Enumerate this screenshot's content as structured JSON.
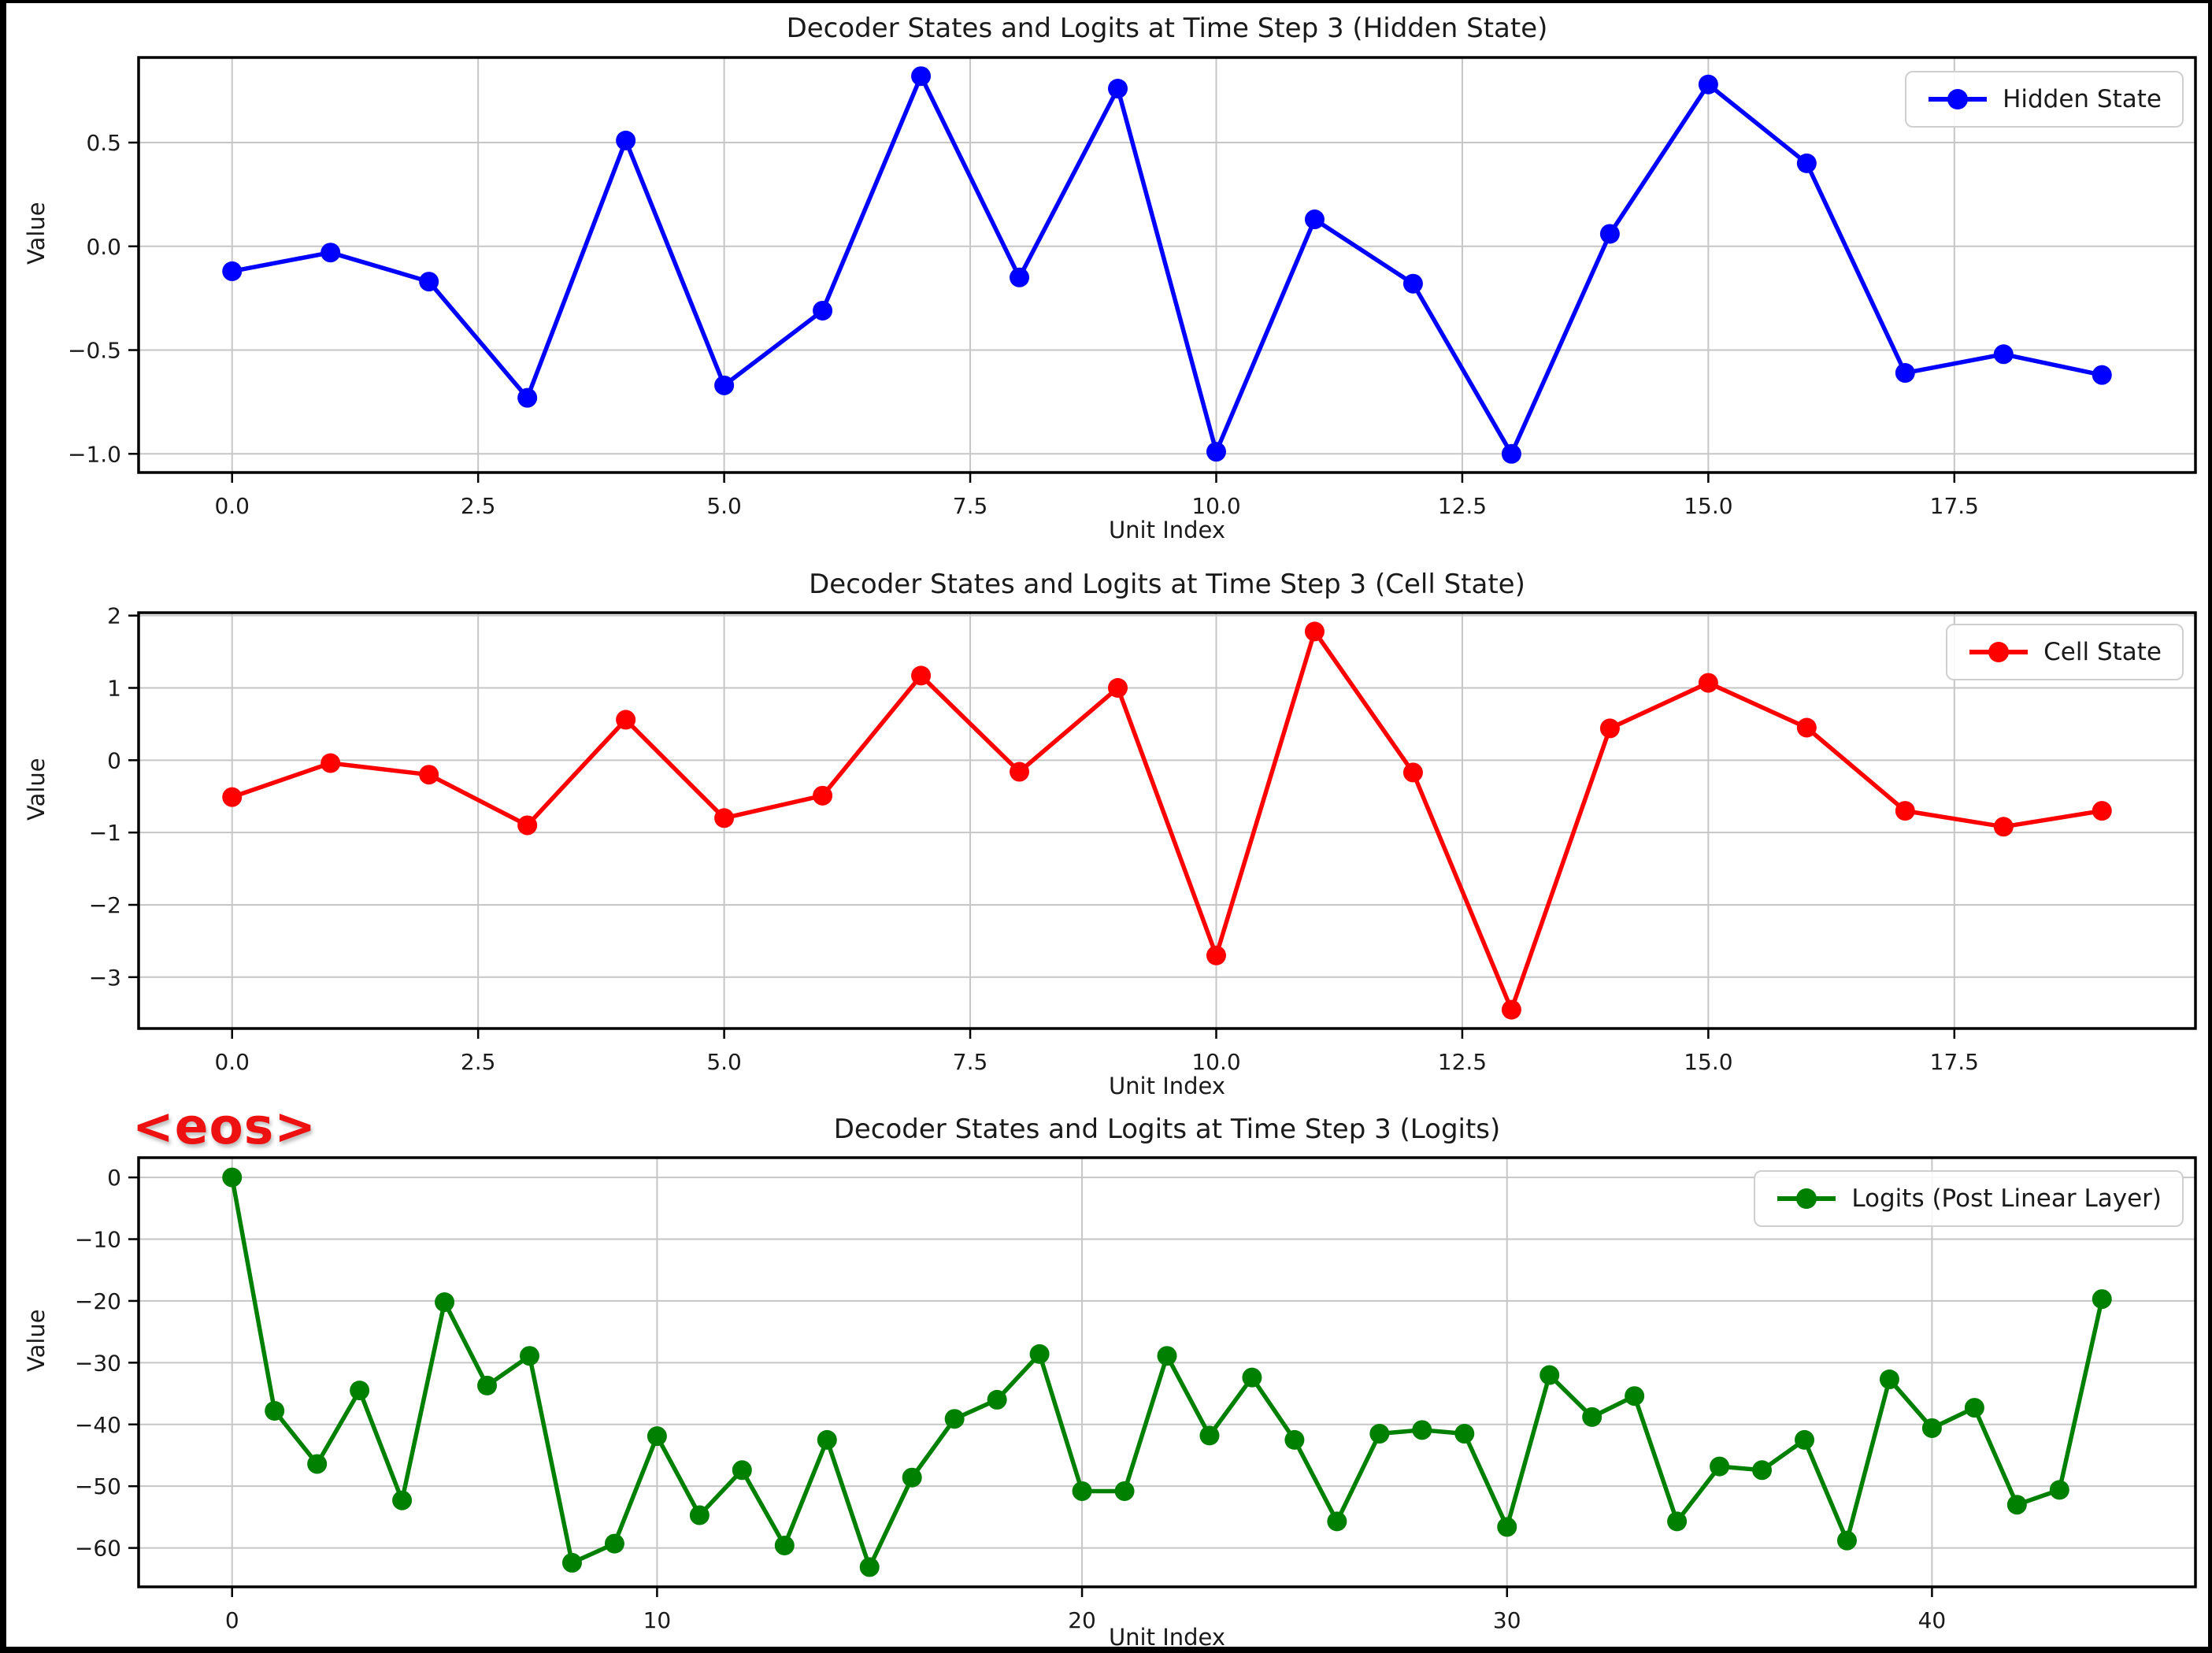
{
  "figure": {
    "background": "#ffffff",
    "border_color": "#000000",
    "grid_color": "#c6c6c6",
    "axis_color": "#000000",
    "text_color": "#1a1a1a"
  },
  "annotation": {
    "text": "<eos>",
    "color": "#ee1111"
  },
  "chart_data": [
    {
      "type": "line",
      "title": "Decoder States and Logits at Time Step 3 (Hidden State)",
      "xlabel": "Unit Index",
      "ylabel": "Value",
      "legend_label": "Hidden State",
      "legend_position": "upper right",
      "color": "#0000ff",
      "grid": true,
      "x": [
        0,
        1,
        2,
        3,
        4,
        5,
        6,
        7,
        8,
        9,
        10,
        11,
        12,
        13,
        14,
        15,
        16,
        17,
        18,
        19
      ],
      "values": [
        -0.12,
        -0.03,
        -0.17,
        -0.73,
        0.51,
        -0.67,
        -0.31,
        0.82,
        -0.15,
        0.76,
        -0.99,
        0.13,
        -0.18,
        -1.0,
        0.06,
        0.78,
        0.4,
        -0.61,
        -0.52,
        -0.62
      ],
      "xlim": [
        -0.95,
        19.95
      ],
      "ylim": [
        -1.09,
        0.91
      ],
      "xticks": [
        0,
        2.5,
        5,
        7.5,
        10,
        12.5,
        15,
        17.5
      ],
      "xtick_labels": [
        "0.0",
        "2.5",
        "5.0",
        "7.5",
        "10.0",
        "12.5",
        "15.0",
        "17.5"
      ],
      "yticks": [
        0.5,
        0.0,
        -0.5,
        -1.0
      ],
      "ytick_labels": [
        "0.5",
        "0.0",
        "−0.5",
        "−1.0"
      ]
    },
    {
      "type": "line",
      "title": "Decoder States and Logits at Time Step 3 (Cell State)",
      "xlabel": "Unit Index",
      "ylabel": "Value",
      "legend_label": "Cell State",
      "legend_position": "upper right",
      "color": "#ff0000",
      "grid": true,
      "x": [
        0,
        1,
        2,
        3,
        4,
        5,
        6,
        7,
        8,
        9,
        10,
        11,
        12,
        13,
        14,
        15,
        16,
        17,
        18,
        19
      ],
      "values": [
        -0.51,
        -0.04,
        -0.2,
        -0.9,
        0.56,
        -0.8,
        -0.49,
        1.17,
        -0.16,
        1.0,
        -2.7,
        1.78,
        -0.17,
        -3.45,
        0.44,
        1.07,
        0.45,
        -0.7,
        -0.92,
        -0.7
      ],
      "xlim": [
        -0.95,
        19.95
      ],
      "ylim": [
        -3.71,
        2.04
      ],
      "xticks": [
        0,
        2.5,
        5,
        7.5,
        10,
        12.5,
        15,
        17.5
      ],
      "xtick_labels": [
        "0.0",
        "2.5",
        "5.0",
        "7.5",
        "10.0",
        "12.5",
        "15.0",
        "17.5"
      ],
      "yticks": [
        2,
        1,
        0,
        -1,
        -2,
        -3
      ],
      "ytick_labels": [
        "2",
        "1",
        "0",
        "−1",
        "−2",
        "−3"
      ]
    },
    {
      "type": "line",
      "title": "Decoder States and Logits at Time Step 3 (Logits)",
      "xlabel": "Unit Index",
      "ylabel": "Value",
      "legend_label": "Logits (Post Linear Layer)",
      "legend_position": "upper right",
      "color": "#008000",
      "grid": true,
      "x": [
        0,
        1,
        2,
        3,
        4,
        5,
        6,
        7,
        8,
        9,
        10,
        11,
        12,
        13,
        14,
        15,
        16,
        17,
        18,
        19,
        20,
        21,
        22,
        23,
        24,
        25,
        26,
        27,
        28,
        29,
        30,
        31,
        32,
        33,
        34,
        35,
        36,
        37,
        38,
        39,
        40,
        41,
        42,
        43,
        44
      ],
      "values": [
        0,
        -37.8,
        -46.4,
        -34.5,
        -52.3,
        -20.2,
        -33.7,
        -28.9,
        -62.4,
        -59.3,
        -41.9,
        -54.7,
        -47.4,
        -59.6,
        -42.5,
        -63.1,
        -48.6,
        -39.1,
        -36.0,
        -28.6,
        -50.8,
        -50.8,
        -28.9,
        -41.8,
        -32.4,
        -42.5,
        -55.7,
        -41.5,
        -40.9,
        -41.5,
        -56.6,
        -32.0,
        -38.8,
        -35.4,
        -55.7,
        -46.8,
        -47.4,
        -42.5,
        -58.8,
        -32.7,
        -40.6,
        -37.3,
        -53.0,
        -50.6,
        -19.7
      ],
      "xlim": [
        -2.2,
        46.2
      ],
      "ylim": [
        -66.3,
        3.2
      ],
      "xticks": [
        0,
        10,
        20,
        30,
        40
      ],
      "xtick_labels": [
        "0",
        "10",
        "20",
        "30",
        "40"
      ],
      "yticks": [
        0,
        -10,
        -20,
        -30,
        -40,
        -50,
        -60
      ],
      "ytick_labels": [
        "0",
        "−10",
        "−20",
        "−30",
        "−40",
        "−50",
        "−60"
      ]
    }
  ]
}
